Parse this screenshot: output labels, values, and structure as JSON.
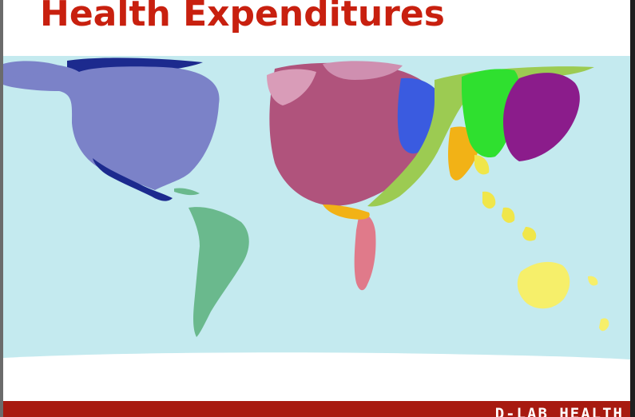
{
  "slide": {
    "title": "Health Expenditures",
    "footer": "D-LAB HEALTH"
  },
  "colors": {
    "title": "#c8200f",
    "footer_bar": "#a81a10",
    "ocean": "#c4eaef",
    "north_america": "#7b82c8",
    "central_america": "#1c2a8e",
    "south_america": "#6ab98d",
    "europe": "#b0537c",
    "europe_light": "#d99cb8",
    "russia_scandinavia": "#cf8fb0",
    "eastern_europe": "#3a5be0",
    "middle_east": "#9ccb52",
    "africa": "#e07a8a",
    "india": "#f2b216",
    "central_asia": "#2fe02f",
    "china": "#8b1c8b",
    "southeast_asia": "#f0e64a",
    "australia": "#f6ef6a"
  },
  "map": {
    "regions": [
      "north-america",
      "central-america",
      "south-america",
      "europe",
      "eastern-europe",
      "africa",
      "middle-east",
      "india",
      "central-asia",
      "china",
      "southeast-asia",
      "australia",
      "new-zealand"
    ]
  }
}
